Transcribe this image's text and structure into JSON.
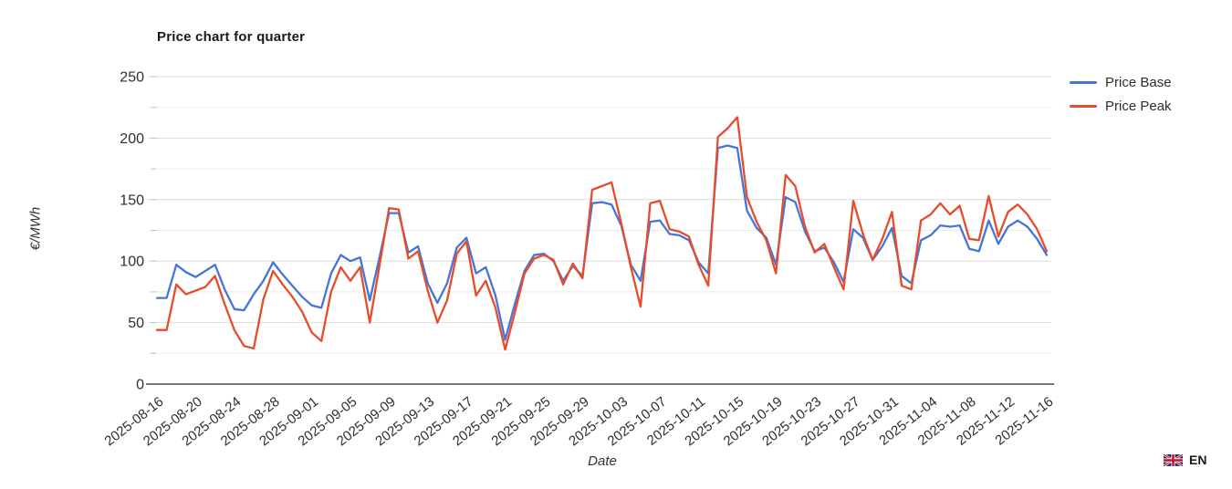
{
  "title": "Price chart for quarter",
  "y_axis": {
    "label": "€/MWh",
    "ticks": [
      0,
      50,
      100,
      150,
      200,
      250
    ],
    "minor_step": 25,
    "max": 250
  },
  "x_axis": {
    "label": "Date",
    "tick_every_days": 4,
    "tick_labels": [
      "2025-08-16",
      "2025-08-20",
      "2025-08-24",
      "2025-08-28",
      "2025-09-01",
      "2025-09-05",
      "2025-09-09",
      "2025-09-13",
      "2025-09-17",
      "2025-09-21",
      "2025-09-25",
      "2025-09-29",
      "2025-10-03",
      "2025-10-07",
      "2025-10-11",
      "2025-10-15",
      "2025-10-19",
      "2025-10-23",
      "2025-10-27",
      "2025-10-31",
      "2025-11-04",
      "2025-11-08",
      "2025-11-12",
      "2025-11-16"
    ]
  },
  "language": {
    "code": "EN",
    "flag": "uk-flag-icon"
  },
  "colors": {
    "base_line": "#4674d9",
    "peak_line": "#e74c2a",
    "grid_major": "#dcdcdc",
    "grid_minor": "#ebebeb",
    "axis_line": "#4a4a4a",
    "tick_text": "#2e2e2e"
  },
  "chart_data": {
    "type": "line",
    "title": "Price chart for quarter",
    "xlabel": "Date",
    "ylabel": "€/MWh",
    "ylim": [
      0,
      250
    ],
    "grid": true,
    "legend_position": "top-right",
    "dates": [
      "2025-08-16",
      "2025-08-17",
      "2025-08-18",
      "2025-08-19",
      "2025-08-20",
      "2025-08-21",
      "2025-08-22",
      "2025-08-23",
      "2025-08-24",
      "2025-08-25",
      "2025-08-26",
      "2025-08-27",
      "2025-08-28",
      "2025-08-29",
      "2025-08-30",
      "2025-08-31",
      "2025-09-01",
      "2025-09-02",
      "2025-09-03",
      "2025-09-04",
      "2025-09-05",
      "2025-09-06",
      "2025-09-07",
      "2025-09-08",
      "2025-09-09",
      "2025-09-10",
      "2025-09-11",
      "2025-09-12",
      "2025-09-13",
      "2025-09-14",
      "2025-09-15",
      "2025-09-16",
      "2025-09-17",
      "2025-09-18",
      "2025-09-19",
      "2025-09-20",
      "2025-09-21",
      "2025-09-22",
      "2025-09-23",
      "2025-09-24",
      "2025-09-25",
      "2025-09-26",
      "2025-09-27",
      "2025-09-28",
      "2025-09-29",
      "2025-09-30",
      "2025-10-01",
      "2025-10-02",
      "2025-10-03",
      "2025-10-04",
      "2025-10-05",
      "2025-10-06",
      "2025-10-07",
      "2025-10-08",
      "2025-10-09",
      "2025-10-10",
      "2025-10-11",
      "2025-10-12",
      "2025-10-13",
      "2025-10-14",
      "2025-10-15",
      "2025-10-16",
      "2025-10-17",
      "2025-10-18",
      "2025-10-19",
      "2025-10-20",
      "2025-10-21",
      "2025-10-22",
      "2025-10-23",
      "2025-10-24",
      "2025-10-25",
      "2025-10-26",
      "2025-10-27",
      "2025-10-28",
      "2025-10-29",
      "2025-10-30",
      "2025-10-31",
      "2025-11-01",
      "2025-11-02",
      "2025-11-03",
      "2025-11-04",
      "2025-11-05",
      "2025-11-06",
      "2025-11-07",
      "2025-11-08",
      "2025-11-09",
      "2025-11-10",
      "2025-11-11",
      "2025-11-12",
      "2025-11-13",
      "2025-11-14",
      "2025-11-15",
      "2025-11-16"
    ],
    "series": [
      {
        "name": "Price Base",
        "color": "#4674d9",
        "values": [
          70,
          70,
          97,
          91,
          87,
          92,
          97,
          77,
          61,
          60,
          73,
          84,
          99,
          89,
          80,
          71,
          64,
          62,
          90,
          105,
          100,
          103,
          68,
          103,
          139,
          139,
          107,
          112,
          82,
          66,
          82,
          111,
          119,
          90,
          95,
          72,
          36,
          65,
          92,
          105,
          106,
          100,
          84,
          96,
          88,
          147,
          148,
          146,
          129,
          97,
          84,
          132,
          133,
          122,
          121,
          117,
          99,
          90,
          192,
          194,
          192,
          141,
          127,
          119,
          97,
          152,
          148,
          124,
          108,
          111,
          99,
          83,
          126,
          119,
          101,
          112,
          127,
          88,
          82,
          117,
          121,
          129,
          128,
          129,
          110,
          108,
          133,
          114,
          128,
          133,
          128,
          118,
          105
        ]
      },
      {
        "name": "Price Peak",
        "color": "#e74c2a",
        "values": [
          44,
          44,
          81,
          73,
          76,
          79,
          88,
          65,
          44,
          31,
          29,
          69,
          92,
          81,
          71,
          59,
          42,
          35,
          75,
          95,
          84,
          95,
          50,
          96,
          143,
          142,
          102,
          108,
          76,
          50,
          68,
          106,
          116,
          72,
          84,
          62,
          28,
          58,
          90,
          102,
          105,
          101,
          81,
          98,
          86,
          158,
          161,
          164,
          131,
          95,
          63,
          147,
          149,
          126,
          124,
          120,
          97,
          80,
          201,
          208,
          217,
          152,
          132,
          117,
          90,
          170,
          161,
          128,
          107,
          114,
          95,
          77,
          149,
          122,
          101,
          118,
          140,
          80,
          77,
          133,
          138,
          147,
          138,
          145,
          118,
          117,
          153,
          120,
          140,
          146,
          138,
          126,
          108
        ]
      }
    ]
  }
}
